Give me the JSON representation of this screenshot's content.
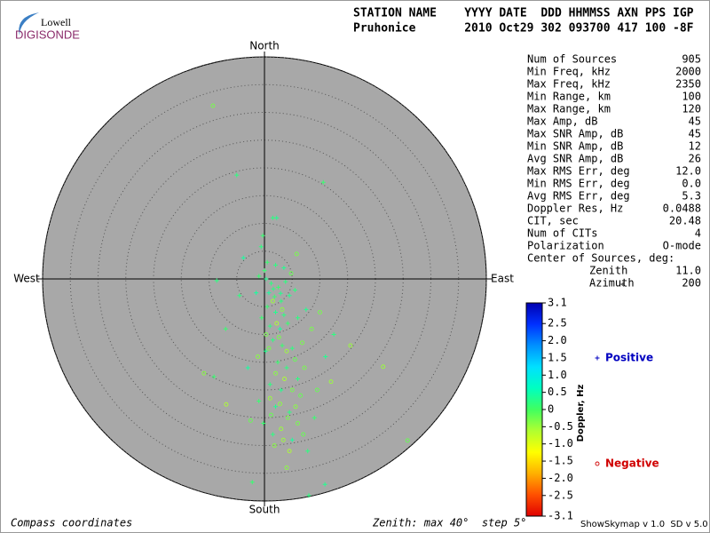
{
  "header": {
    "logo_top": "Lowell",
    "logo_bottom": "DIGISONDE",
    "line1": "STATION NAME    YYYY DATE  DDD HHMMSS AXN PPS IGP",
    "line2": "Pruhonice       2010 Oct29 302 093700 417 100 -8F"
  },
  "stats": [
    [
      "Num of Sources",
      "905"
    ],
    [
      "Min Freq, kHz",
      "2000"
    ],
    [
      "Max Freq, kHz",
      "2350"
    ],
    [
      "Min Range, km",
      "100"
    ],
    [
      "Max Range, km",
      "120"
    ],
    [
      "Max Amp, dB",
      "45"
    ],
    [
      "Max SNR Amp, dB",
      "45"
    ],
    [
      "Min SNR Amp, dB",
      "12"
    ],
    [
      "Avg SNR Amp, dB",
      "26"
    ],
    [
      "Max RMS Err, deg",
      "12.0"
    ],
    [
      "Min RMS Err, deg",
      "0.0"
    ],
    [
      "Avg RMS Err, deg",
      "5.3"
    ],
    [
      "Doppler Res, Hz",
      "0.0488"
    ],
    [
      "CIT, sec",
      "20.48"
    ],
    [
      "Num of CITs",
      "4"
    ],
    [
      "Polarization",
      "O-mode"
    ]
  ],
  "center": {
    "title": "Center of Sources, deg:",
    "rows": [
      [
        "Zenith",
        "11.0"
      ],
      [
        "Azimuth",
        "200"
      ]
    ]
  },
  "footer": {
    "left": "Compass coordinates",
    "middle": "Zenith: max 40°  step 5°",
    "right": "ShowSkymap v 1.0  SD v 5.0"
  },
  "chart_data": {
    "type": "polar-scatter",
    "directions": {
      "north": "North",
      "south": "South",
      "east": "East",
      "west": "West"
    },
    "rlim": [
      0,
      40
    ],
    "rticks": [
      5,
      10,
      15,
      20,
      25,
      30,
      35,
      40
    ],
    "grid": true,
    "colorbar": {
      "label": "Doppler, Hz",
      "zlim": [
        -3.1,
        3.1
      ],
      "colors": [
        "#0000b0",
        "#0030ff",
        "#0090ff",
        "#00e0ff",
        "#00ffc0",
        "#40ff60",
        "#b0ff30",
        "#ffff00",
        "#ffb000",
        "#ff5000",
        "#e00000"
      ],
      "ticks": [
        3.1,
        2.5,
        {
          "value": 2,
          "label": "2.0"
        },
        1.5,
        {
          "value": 1,
          "label": "1.0"
        },
        0.5,
        0,
        -0.5,
        {
          "value": -1,
          "label": "-1.0"
        },
        -1.5,
        {
          "value": -2,
          "label": "-2.0"
        },
        -2.5,
        -3.1
      ]
    },
    "series": [
      {
        "name": "Positive",
        "marker": "plus",
        "color": "#0000c0",
        "x": [
          -5,
          10.6,
          2.2,
          1.5,
          -0.3,
          -0.6,
          -3.8,
          0.5,
          2,
          3.5,
          -8.6,
          -1,
          0.3,
          1.2,
          2.5,
          3.8,
          0.8,
          1.8,
          3,
          4.5,
          5.5,
          0.5,
          2,
          3.5,
          -0.5,
          1,
          2.8,
          4.2,
          6,
          7.5,
          1.5,
          3.2,
          0.2,
          5,
          2.4,
          4,
          -3,
          -9.1,
          1,
          3,
          6,
          -1,
          2,
          4.5,
          -0.2,
          1.5,
          5,
          -2.2,
          8,
          10.9,
          7.8,
          9,
          11,
          12.5,
          -7,
          -4.5,
          -1.5,
          0,
          1.6,
          2.9
        ],
        "values": [
          18.7,
          17.4,
          11,
          11,
          7.8,
          5.8,
          3.8,
          3,
          2.5,
          2,
          -0.3,
          0.5,
          0,
          -0.8,
          -1.5,
          -0.5,
          -2.5,
          -3.2,
          -4,
          -3,
          -2,
          -5,
          -6,
          -6.5,
          -7,
          -8.5,
          -9,
          -8,
          -7,
          -5.5,
          -11,
          -12,
          -13,
          -12.5,
          -15,
          -16,
          -16,
          -17.6,
          -19,
          -20,
          -18,
          -22,
          -23,
          -24,
          -26,
          -28,
          -29,
          -36.6,
          -39,
          -37,
          -31,
          -25,
          -14,
          -10,
          -9,
          -3,
          -2.5,
          1.5,
          -1.8,
          -2.6
        ],
        "doppler": [
          0.2,
          0.1,
          0.3,
          0.2,
          0.1,
          0.2,
          0.4,
          0.1,
          0.2,
          0.3,
          0.2,
          0.1,
          0.3,
          0.2,
          0.1,
          0.2,
          0.4,
          0.1,
          0.2,
          0.3,
          0.2,
          0.1,
          0.3,
          0.2,
          0.1,
          0.2,
          0.4,
          0.1,
          0.2,
          0.3,
          0.2,
          0.1,
          0.3,
          0.2,
          0.1,
          0.2,
          0.4,
          0.1,
          0.2,
          0.3,
          0.2,
          0.1,
          0.3,
          0.2,
          0.1,
          0.2,
          0.4,
          0.1,
          0.2,
          0.3,
          0.2,
          0.1,
          0.3,
          0.2,
          0.1,
          0.2,
          0.4,
          0.1,
          0.2,
          0.3
        ]
      },
      {
        "name": "Negative",
        "marker": "circle",
        "color": "#d00000",
        "x": [
          -9.3,
          21.4,
          25.8,
          -10.9,
          -6.9,
          5.8,
          4.8,
          1.5,
          3.2,
          0.3,
          2.6,
          4,
          5.5,
          2,
          3.6,
          5,
          6.5,
          1,
          2.8,
          4.2,
          6,
          3,
          7,
          1.8,
          4.5,
          7.2,
          9.5,
          12,
          -1.2,
          8.5,
          10,
          15.5,
          -2.5,
          4,
          2.2,
          6.8,
          1.2,
          3.4,
          5.6,
          0.8
        ],
        "values": [
          31.2,
          -15.8,
          -29.1,
          -17,
          -22.6,
          4.5,
          1,
          -4,
          -5.5,
          -10,
          -10.5,
          -13,
          -14.5,
          -17,
          -18,
          -20,
          -21,
          -21.5,
          -22.5,
          -25,
          -26,
          -27,
          -28,
          -30,
          -31,
          -16,
          -20,
          -18.5,
          -14,
          -9,
          -6,
          -12,
          -25.5,
          -34,
          -8,
          -11.5,
          -24.5,
          -29,
          -23,
          -12.5
        ],
        "doppler": [
          -0.3,
          -0.5,
          -0.2,
          -0.4,
          -0.6,
          -0.3,
          -0.2,
          -0.5,
          -0.4,
          -0.3,
          -0.3,
          -0.5,
          -0.2,
          -0.4,
          -0.6,
          -0.3,
          -0.2,
          -0.5,
          -0.4,
          -0.3,
          -0.3,
          -0.5,
          -0.2,
          -0.4,
          -0.6,
          -0.3,
          -0.2,
          -0.5,
          -0.4,
          -0.3,
          -0.3,
          -0.5,
          -0.2,
          -0.4,
          -0.6,
          -0.3,
          -0.2,
          -0.5,
          -0.4,
          -0.3
        ]
      }
    ]
  }
}
